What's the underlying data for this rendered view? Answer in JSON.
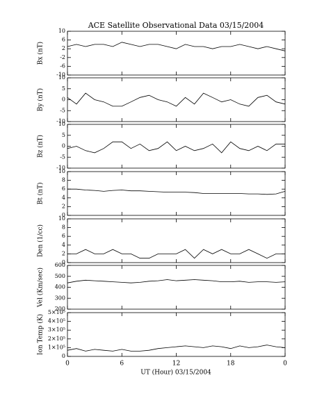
{
  "chart_data": [
    {
      "type": "line",
      "title": "ACE Satellite Observational Data  03/15/2004",
      "ylabel": "Bx (nT)",
      "ylim": [
        -10,
        10
      ],
      "yticks": [
        -10,
        -6,
        -2,
        2,
        6,
        10
      ],
      "x": [
        0,
        1,
        2,
        3,
        4,
        5,
        6,
        7,
        8,
        9,
        10,
        11,
        12,
        13,
        14,
        15,
        16,
        17,
        18,
        19,
        20,
        21,
        22,
        23,
        24
      ],
      "values": [
        3,
        4,
        3,
        4,
        4,
        3,
        5,
        4,
        3,
        4,
        4,
        3,
        2,
        4,
        3,
        3,
        2,
        3,
        3,
        4,
        3,
        2,
        3,
        2,
        1
      ],
      "color": "#000000"
    },
    {
      "type": "line",
      "ylabel": "By (nT)",
      "ylim": [
        -10,
        10
      ],
      "yticks": [
        -10,
        -5,
        0,
        5,
        10
      ],
      "x": [
        0,
        1,
        2,
        3,
        4,
        5,
        6,
        7,
        8,
        9,
        10,
        11,
        12,
        13,
        14,
        15,
        16,
        17,
        18,
        19,
        20,
        21,
        22,
        23,
        24
      ],
      "values": [
        1,
        -2,
        3,
        0,
        -1,
        -3,
        -3,
        -1,
        1,
        2,
        0,
        -1,
        -3,
        1,
        -2,
        3,
        1,
        -1,
        0,
        -2,
        -3,
        1,
        2,
        -1,
        -2
      ],
      "color": "#000000"
    },
    {
      "type": "line",
      "ylabel": "Bz (nT)",
      "ylim": [
        -10,
        10
      ],
      "yticks": [
        -10,
        -5,
        0,
        5,
        10
      ],
      "x": [
        0,
        1,
        2,
        3,
        4,
        5,
        6,
        7,
        8,
        9,
        10,
        11,
        12,
        13,
        14,
        15,
        16,
        17,
        18,
        19,
        20,
        21,
        22,
        23,
        24
      ],
      "values": [
        -1,
        0,
        -2,
        -3,
        -1,
        2,
        2,
        -1,
        1,
        -2,
        -1,
        2,
        -2,
        0,
        -2,
        -1,
        1,
        -3,
        2,
        -1,
        -2,
        0,
        -2,
        1,
        1
      ],
      "color": "#000000"
    },
    {
      "type": "line",
      "ylabel": "Bt (nT)",
      "ylim": [
        0,
        10
      ],
      "yticks": [
        0,
        2,
        4,
        6,
        8,
        10
      ],
      "x": [
        0,
        1,
        2,
        3,
        4,
        5,
        6,
        7,
        8,
        9,
        10,
        11,
        12,
        13,
        14,
        15,
        16,
        17,
        18,
        19,
        20,
        21,
        22,
        23,
        24
      ],
      "values": [
        6,
        6,
        5.8,
        5.7,
        5.5,
        5.7,
        5.8,
        5.6,
        5.6,
        5.5,
        5.4,
        5.3,
        5.3,
        5.3,
        5.2,
        5,
        5,
        5,
        5,
        5,
        4.9,
        4.9,
        4.8,
        4.9,
        5.5
      ],
      "color": "#000000"
    },
    {
      "type": "line",
      "ylabel": "Den (1/cc)",
      "ylim": [
        0,
        10
      ],
      "yticks": [
        0,
        2,
        4,
        6,
        8,
        10
      ],
      "x": [
        0,
        1,
        2,
        3,
        4,
        5,
        6,
        7,
        8,
        9,
        10,
        11,
        12,
        13,
        14,
        15,
        16,
        17,
        18,
        19,
        20,
        21,
        22,
        23,
        24
      ],
      "values": [
        2,
        2,
        3,
        2,
        2,
        3,
        2,
        2,
        1,
        1,
        2,
        2,
        2,
        3,
        1,
        3,
        2,
        3,
        2,
        2,
        3,
        2,
        1,
        2,
        2
      ],
      "color": "#000000"
    },
    {
      "type": "line",
      "ylabel": "Vel (Km/sec)",
      "ylim": [
        200,
        600
      ],
      "yticks": [
        200,
        300,
        400,
        500,
        600
      ],
      "x": [
        0,
        1,
        2,
        3,
        4,
        5,
        6,
        7,
        8,
        9,
        10,
        11,
        12,
        13,
        14,
        15,
        16,
        17,
        18,
        19,
        20,
        21,
        22,
        23,
        24
      ],
      "values": [
        440,
        455,
        465,
        460,
        455,
        450,
        445,
        440,
        445,
        455,
        460,
        470,
        460,
        465,
        470,
        465,
        460,
        450,
        450,
        455,
        445,
        450,
        450,
        445,
        450
      ],
      "color": "#000000"
    },
    {
      "type": "line",
      "ylabel": "Ion Temp (K)",
      "xlabel": "UT (Hour)  03/15/2004",
      "ylim": [
        0,
        500000
      ],
      "yticks": [
        0,
        {
          "value": 100000,
          "label": "1×10⁵"
        },
        {
          "value": 200000,
          "label": "2×10⁵"
        },
        {
          "value": 300000,
          "label": "3×10⁵"
        },
        {
          "value": 400000,
          "label": "4×10⁵"
        },
        {
          "value": 500000,
          "label": "5×10⁵"
        }
      ],
      "xlim": [
        0,
        24
      ],
      "xticks": [
        0,
        6,
        12,
        18,
        {
          "value": 24,
          "label": "0"
        }
      ],
      "x": [
        0,
        1,
        2,
        3,
        4,
        5,
        6,
        7,
        8,
        9,
        10,
        11,
        12,
        13,
        14,
        15,
        16,
        17,
        18,
        19,
        20,
        21,
        22,
        23,
        24
      ],
      "values": [
        70000,
        90000,
        60000,
        80000,
        70000,
        60000,
        80000,
        60000,
        60000,
        70000,
        90000,
        100000,
        110000,
        120000,
        110000,
        100000,
        120000,
        110000,
        90000,
        120000,
        100000,
        110000,
        130000,
        110000,
        100000
      ],
      "color": "#000000"
    }
  ]
}
